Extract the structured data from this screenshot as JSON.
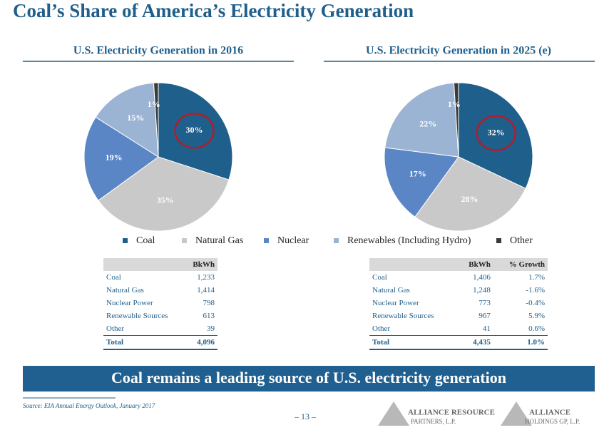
{
  "title": "Coal’s Share of America’s Electricity Generation",
  "chart_data": [
    {
      "type": "pie",
      "title": "U.S. Electricity Generation in 2016",
      "categories": [
        "Coal",
        "Natural Gas",
        "Nuclear",
        "Renewables (Including Hydro)",
        "Other"
      ],
      "colors": [
        "#1f5f8b",
        "#c9c9c9",
        "#5b86c5",
        "#9cb4d3",
        "#3a3a3a"
      ],
      "values": [
        30,
        35,
        19,
        15,
        1
      ],
      "value_labels": [
        "30%",
        "35%",
        "19%",
        "15%",
        "1%"
      ]
    },
    {
      "type": "pie",
      "title": "U.S. Electricity Generation in 2025 (e)",
      "colors": [
        "#1f5f8b",
        "#c9c9c9",
        "#5b86c5",
        "#9cb4d3",
        "#3a3a3a"
      ],
      "values": [
        32,
        28,
        17,
        22,
        1
      ],
      "value_labels": [
        "32%",
        "28%",
        "17%",
        "22%",
        "1%"
      ]
    }
  ],
  "tables": [
    {
      "header": [
        "BkWh"
      ],
      "rows": [
        [
          "Coal",
          "1,233"
        ],
        [
          "Natural Gas",
          "1,414"
        ],
        [
          "Nuclear Power",
          "798"
        ],
        [
          "Renewable Sources",
          "613"
        ],
        [
          "Other",
          "39"
        ],
        [
          "Total",
          "4,096"
        ]
      ]
    },
    {
      "header": [
        "BkWh",
        "% Growth"
      ],
      "rows": [
        [
          "Coal",
          "1,406",
          "1.7%"
        ],
        [
          "Natural Gas",
          "1,248",
          "-1.6%"
        ],
        [
          "Nuclear Power",
          "773",
          "-0.4%"
        ],
        [
          "Renewable Sources",
          "967",
          "5.9%"
        ],
        [
          "Other",
          "41",
          "0.6%"
        ],
        [
          "Total",
          "4,435",
          "1.0%"
        ]
      ]
    }
  ],
  "banner": "Coal remains a leading source of U.S. electricity generation",
  "source": "Source: EIA Annual Energy Outlook, January 2017",
  "page": "– 13 –",
  "logos": [
    {
      "line1": "ALLIANCE RESOURCE",
      "line2": "PARTNERS, L.P."
    },
    {
      "line1": "ALLIANCE",
      "line2": "HOLDINGS GP, L.P."
    }
  ]
}
